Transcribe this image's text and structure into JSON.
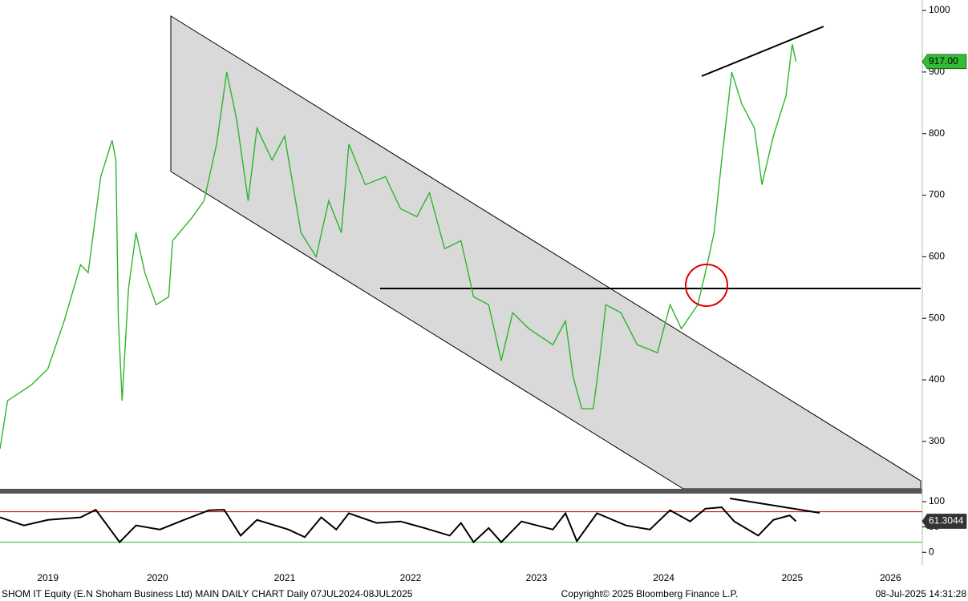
{
  "chart_data": [
    {
      "type": "line",
      "x": [
        2019.25,
        2019.31,
        2019.5,
        2019.63,
        2019.76,
        2019.89,
        2019.95,
        2020.05,
        2020.14,
        2020.17,
        2020.19,
        2020.22,
        2020.27,
        2020.33,
        2020.4,
        2020.49,
        2020.59,
        2020.62,
        2020.78,
        2020.87,
        2020.97,
        2021.05,
        2021.13,
        2021.22,
        2021.29,
        2021.41,
        2021.51,
        2021.64,
        2021.76,
        2021.86,
        2021.96,
        2022.02,
        2022.15,
        2022.31,
        2022.43,
        2022.56,
        2022.66,
        2022.78,
        2022.91,
        2023.01,
        2023.13,
        2023.23,
        2023.32,
        2023.45,
        2023.64,
        2023.74,
        2023.8,
        2023.87,
        2023.96,
        2024.01,
        2024.06,
        2024.18,
        2024.31,
        2024.47,
        2024.57,
        2024.66,
        2024.79,
        2024.85,
        2024.92,
        2024.98,
        2025.06,
        2025.14,
        2025.24,
        2025.3,
        2025.39,
        2025.49,
        2025.54,
        2025.57
      ],
      "series": [
        {
          "color": "#2db52d",
          "values": [
            288,
            366,
            392,
            418,
            496,
            587,
            574,
            730,
            789,
            757,
            496,
            366,
            548,
            639,
            574,
            522,
            535,
            626,
            665,
            691,
            783,
            900,
            822,
            691,
            809,
            757,
            796,
            639,
            600,
            691,
            639,
            783,
            717,
            730,
            678,
            665,
            704,
            613,
            626,
            535,
            522,
            431,
            509,
            483,
            457,
            496,
            405,
            353,
            353,
            431,
            522,
            509,
            457,
            444,
            522,
            483,
            522,
            574,
            639,
            757,
            900,
            848,
            809,
            717,
            796,
            861,
            945,
            917
          ]
        }
      ],
      "xlim": [
        2019.25,
        2026.56
      ],
      "ylim": [
        223,
        1017
      ],
      "yticks": [
        300,
        400,
        500,
        600,
        700,
        800,
        900,
        1000
      ],
      "xticks": [
        {
          "value": 2019.63,
          "label": "2019"
        },
        {
          "value": 2020.5,
          "label": "2020"
        },
        {
          "value": 2021.51,
          "label": "2021"
        },
        {
          "value": 2022.51,
          "label": "2022"
        },
        {
          "value": 2023.51,
          "label": "2023"
        },
        {
          "value": 2024.52,
          "label": "2024"
        },
        {
          "value": 2025.54,
          "label": "2025"
        },
        {
          "value": 2026.32,
          "label": "2026"
        }
      ],
      "last_tag": {
        "value": 917,
        "label": "917.00"
      }
    },
    {
      "type": "line",
      "x": [
        2019.25,
        2019.44,
        2019.63,
        2019.89,
        2020.01,
        2020.2,
        2020.33,
        2020.52,
        2020.71,
        2020.91,
        2021.03,
        2021.16,
        2021.29,
        2021.54,
        2021.67,
        2021.8,
        2021.92,
        2022.02,
        2022.24,
        2022.43,
        2022.62,
        2022.82,
        2022.91,
        2023.01,
        2023.13,
        2023.23,
        2023.39,
        2023.64,
        2023.74,
        2023.83,
        2023.99,
        2024.22,
        2024.41,
        2024.57,
        2024.73,
        2024.85,
        2024.98,
        2025.08,
        2025.27,
        2025.39,
        2025.52,
        2025.57
      ],
      "series": [
        {
          "color": "#000000",
          "values": [
            69,
            53,
            64,
            69,
            84,
            20,
            53,
            45,
            64,
            83,
            84,
            33,
            64,
            45,
            30,
            69,
            45,
            77,
            58,
            61,
            48,
            33,
            58,
            20,
            48,
            20,
            61,
            45,
            77,
            22,
            77,
            53,
            45,
            83,
            61,
            86,
            89,
            61,
            33,
            64,
            73,
            61.3044
          ]
        }
      ],
      "xlim": [
        2019.25,
        2026.56
      ],
      "ylim": [
        -17,
        115.8
      ],
      "yticks": [
        0,
        50,
        100
      ],
      "levels": [
        {
          "value": 80,
          "color": "#c00000"
        },
        {
          "value": 20,
          "color": "#22c022"
        }
      ],
      "last_tag": 61.3044
    }
  ],
  "footer": {
    "left": "SHOM IT Equity (E.N Shoham Business Ltd) MAIN DAILY CHART  Daily 07JUL2024-08JUL2025",
    "center": "Copyright© 2025 Bloomberg Finance L.P.",
    "right": "08-Jul-2025 14:31:28"
  }
}
